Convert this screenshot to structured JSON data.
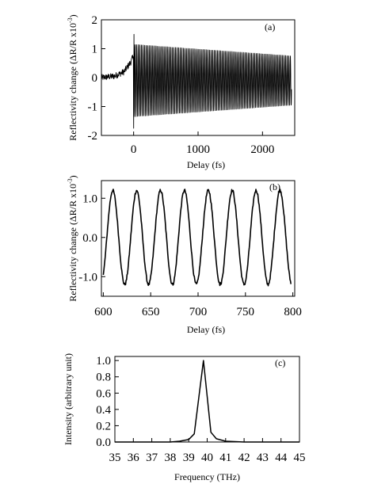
{
  "chart_data": [
    {
      "type": "line",
      "panel_label": "(a)",
      "xlabel": "Delay (fs)",
      "ylabel_main": "Reflectivity change (ΔR/R x10",
      "ylabel_exp": "-3",
      "ylabel_tail": ")",
      "xlim": [
        -500,
        2500
      ],
      "ylim": [
        -2,
        2
      ],
      "xticks": [
        0,
        1000,
        2000
      ],
      "xtick_labels": [
        "0",
        "1000",
        "2000"
      ],
      "yticks": [
        -2,
        -1,
        0,
        1,
        2
      ],
      "ytick_labels": [
        "-2",
        "-1",
        "0",
        "1",
        "2"
      ],
      "series": [
        {
          "x_range": [
            -500,
            2450
          ],
          "pre_zero": {
            "x": [
              -500,
              -300,
              -150,
              -40,
              0
            ],
            "y": [
              0.0,
              0.05,
              0.2,
              0.55,
              0.8
            ]
          },
          "spike": {
            "x": 0,
            "y_min": -1.75,
            "y_max": 1.5
          },
          "oscillation": {
            "frequency_THz": 39.8,
            "amplitude_start": 1.25,
            "amplitude_end": 0.85,
            "offset": -0.1
          }
        }
      ]
    },
    {
      "type": "line",
      "panel_label": "(b)",
      "xlabel": "Delay (fs)",
      "ylabel_main": "Reflectivity change (ΔR/R x10",
      "ylabel_exp": "-3",
      "ylabel_tail": ")",
      "xlim": [
        598,
        802
      ],
      "ylim": [
        -1.5,
        1.45
      ],
      "xticks": [
        600,
        650,
        700,
        750,
        800
      ],
      "xtick_labels": [
        "600",
        "650",
        "700",
        "750",
        "800"
      ],
      "yticks": [
        -1.0,
        0.0,
        1.0
      ],
      "ytick_labels": [
        "-1.0",
        "0.0",
        "1.0"
      ],
      "series": [
        {
          "x_range": [
            600,
            798
          ],
          "oscillation": {
            "period_fs": 25.2,
            "peak_x": [
              610,
              635,
              660,
              685,
              710,
              736,
              761,
              786
            ],
            "amplitude": 1.2
          }
        }
      ]
    },
    {
      "type": "line",
      "panel_label": "(c)",
      "xlabel": "Frequency (THz)",
      "ylabel": "Intensity (arbitrary unit)",
      "xlim": [
        35,
        45
      ],
      "ylim": [
        0,
        1.05
      ],
      "xticks": [
        35,
        36,
        37,
        38,
        39,
        40,
        41,
        42,
        43,
        44,
        45
      ],
      "xtick_labels": [
        "35",
        "36",
        "37",
        "38",
        "39",
        "40",
        "41",
        "42",
        "43",
        "44",
        "45"
      ],
      "yticks": [
        0.0,
        0.2,
        0.4,
        0.6,
        0.8,
        1.0
      ],
      "ytick_labels": [
        "0.0",
        "0.2",
        "0.4",
        "0.6",
        "0.8",
        "1.0"
      ],
      "series": [
        {
          "x": [
            35,
            36,
            37,
            38,
            38.5,
            39,
            39.3,
            39.8,
            40.2,
            40.5,
            41,
            42,
            43,
            44,
            45
          ],
          "y": [
            0.0,
            0.0,
            0.0,
            0.0,
            0.01,
            0.03,
            0.1,
            1.0,
            0.12,
            0.04,
            0.01,
            0.0,
            0.0,
            0.0,
            0.0
          ]
        }
      ]
    }
  ]
}
